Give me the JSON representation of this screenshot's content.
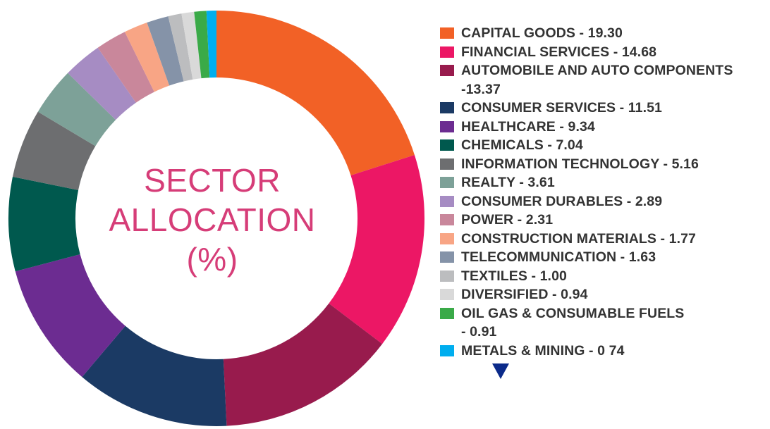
{
  "chart_data": {
    "type": "pie",
    "title": "SECTOR ALLOCATION (%)",
    "title_lines": [
      "SECTOR",
      "ALLOCATION",
      "(%)"
    ],
    "legend_position": "right",
    "series": [
      {
        "name": "CAPITAL GOODS",
        "value": 19.3,
        "label": "CAPITAL GOODS - 19.30",
        "label_lines": [
          "CAPITAL GOODS - 19.30"
        ],
        "color": "#f26126"
      },
      {
        "name": "FINANCIAL SERVICES",
        "value": 14.68,
        "label": "FINANCIAL SERVICES - 14.68",
        "label_lines": [
          "FINANCIAL SERVICES - 14.68"
        ],
        "color": "#ec1765"
      },
      {
        "name": "AUTOMOBILE AND AUTO COMPONENTS",
        "value": 13.37,
        "label": "AUTOMOBILE AND AUTO COMPONENTS -13.37",
        "label_lines": [
          "AUTOMOBILE AND AUTO COMPONENTS",
          "-13.37"
        ],
        "color": "#981b4d"
      },
      {
        "name": "CONSUMER SERVICES",
        "value": 11.51,
        "label": "CONSUMER SERVICES - 11.51",
        "label_lines": [
          "CONSUMER SERVICES - 11.51"
        ],
        "color": "#1b3a64"
      },
      {
        "name": "HEALTHCARE",
        "value": 9.34,
        "label": "HEALTHCARE - 9.34",
        "label_lines": [
          "HEALTHCARE - 9.34"
        ],
        "color": "#6c2c91"
      },
      {
        "name": "CHEMICALS",
        "value": 7.04,
        "label": "CHEMICALS - 7.04",
        "label_lines": [
          "CHEMICALS - 7.04"
        ],
        "color": "#00594e"
      },
      {
        "name": "INFORMATION TECHNOLOGY",
        "value": 5.16,
        "label": "INFORMATION TECHNOLOGY - 5.16",
        "label_lines": [
          "INFORMATION TECHNOLOGY - 5.16"
        ],
        "color": "#6d6e70"
      },
      {
        "name": "REALTY",
        "value": 3.61,
        "label": "REALTY - 3.61",
        "label_lines": [
          "REALTY - 3.61"
        ],
        "color": "#7da198"
      },
      {
        "name": "CONSUMER DURABLES",
        "value": 2.89,
        "label": "CONSUMER DURABLES - 2.89",
        "label_lines": [
          "CONSUMER DURABLES - 2.89"
        ],
        "color": "#a68cc3"
      },
      {
        "name": "POWER",
        "value": 2.31,
        "label": "POWER - 2.31",
        "label_lines": [
          "POWER - 2.31"
        ],
        "color": "#c9879b"
      },
      {
        "name": "CONSTRUCTION MATERIALS",
        "value": 1.77,
        "label": "CONSTRUCTION MATERIALS - 1.77",
        "label_lines": [
          "CONSTRUCTION MATERIALS - 1.77"
        ],
        "color": "#f8a585"
      },
      {
        "name": "TELECOMMUNICATION",
        "value": 1.63,
        "label": "TELECOMMUNICATION - 1.63",
        "label_lines": [
          "TELECOMMUNICATION - 1.63"
        ],
        "color": "#8593a8"
      },
      {
        "name": "TEXTILES",
        "value": 1.0,
        "label": "TEXTILES - 1.00",
        "label_lines": [
          "TEXTILES - 1.00"
        ],
        "color": "#bcbdbf"
      },
      {
        "name": "DIVERSIFIED",
        "value": 0.94,
        "label": "DIVERSIFIED - 0.94",
        "label_lines": [
          "DIVERSIFIED - 0.94"
        ],
        "color": "#d9d9d9"
      },
      {
        "name": "OIL GAS & CONSUMABLE FUELS",
        "value": 0.91,
        "label": "OIL GAS & CONSUMABLE FUELS - 0.91",
        "label_lines": [
          "OIL GAS & CONSUMABLE FUELS",
          " - 0.91"
        ],
        "color": "#3aaa48"
      },
      {
        "name": "METALS & MINING",
        "value": 0.74,
        "label": "METALS & MINING - 0 74",
        "label_lines": [
          "METALS & MINING - 0 74"
        ],
        "color": "#00aeef"
      }
    ]
  },
  "colors": {
    "title": "#d63d78",
    "legend_text": "#333333",
    "scroll_arrow": "#0b2a8a",
    "background": "#ffffff"
  },
  "icons": {
    "scroll": "down-arrow-icon"
  }
}
